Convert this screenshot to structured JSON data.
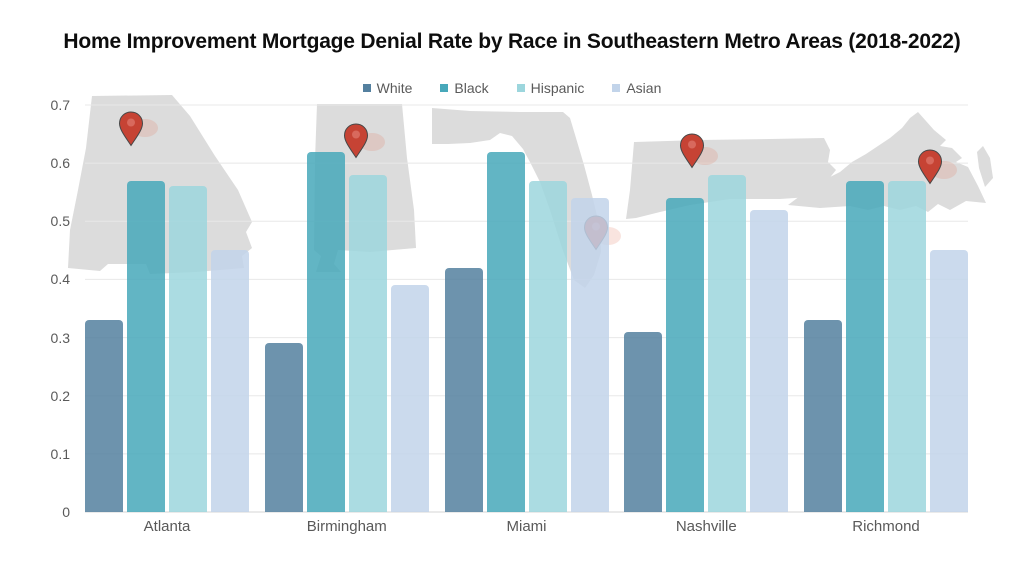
{
  "chart_data": {
    "type": "bar",
    "title": "Home Improvement Mortgage Denial Rate by Race in Southeastern Metro Areas (2018-2022)",
    "categories": [
      "Atlanta",
      "Birmingham",
      "Miami",
      "Nashville",
      "Richmond"
    ],
    "series": [
      {
        "name": "White",
        "color": "#54809f",
        "values": [
          0.33,
          0.29,
          0.42,
          0.31,
          0.33
        ]
      },
      {
        "name": "Black",
        "color": "#47a8ba",
        "values": [
          0.57,
          0.62,
          0.62,
          0.54,
          0.57
        ]
      },
      {
        "name": "Hispanic",
        "color": "#9cd6dd",
        "values": [
          0.56,
          0.58,
          0.57,
          0.58,
          0.57
        ]
      },
      {
        "name": "Asian",
        "color": "#c2d4ea",
        "values": [
          0.45,
          0.39,
          0.54,
          0.52,
          0.45
        ]
      }
    ],
    "xlabel": "",
    "ylabel": "",
    "ylim": [
      0,
      0.7
    ],
    "yticks": [
      0,
      0.1,
      0.2,
      0.3,
      0.4,
      0.5,
      0.6,
      0.7
    ],
    "grid": true,
    "legend_position": "top",
    "annotations": {
      "background_state_silhouettes": [
        "Georgia",
        "Alabama",
        "Florida",
        "Tennessee",
        "Virginia"
      ],
      "map_pin_color": "#c64334",
      "map_fill_color": "#dcdcdc",
      "gridline_color": "#e8e8e8"
    }
  }
}
